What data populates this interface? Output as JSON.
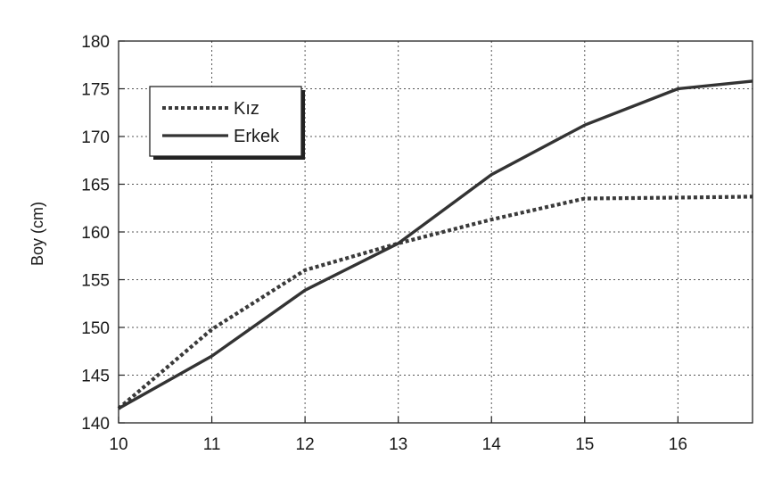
{
  "chart_data": {
    "type": "line",
    "ylabel": "Boy (cm)",
    "x": [
      10,
      11,
      12,
      13,
      14,
      15,
      16,
      16.8
    ],
    "xlim": [
      10,
      16.8
    ],
    "ylim": [
      140,
      180
    ],
    "xticks": [
      10,
      11,
      12,
      13,
      14,
      15,
      16
    ],
    "yticks": [
      140,
      145,
      150,
      155,
      160,
      165,
      170,
      175,
      180
    ],
    "grid": true,
    "legend_position": "top-left",
    "series": [
      {
        "name": "Kız",
        "style": "dotted",
        "color": "#3a3a3a",
        "values": [
          141.5,
          149.8,
          156.0,
          158.8,
          161.3,
          163.5,
          163.6,
          163.7
        ]
      },
      {
        "name": "Erkek",
        "style": "solid",
        "color": "#333333",
        "values": [
          141.5,
          147.0,
          153.9,
          158.8,
          166.0,
          171.2,
          175.0,
          175.8
        ]
      }
    ]
  }
}
